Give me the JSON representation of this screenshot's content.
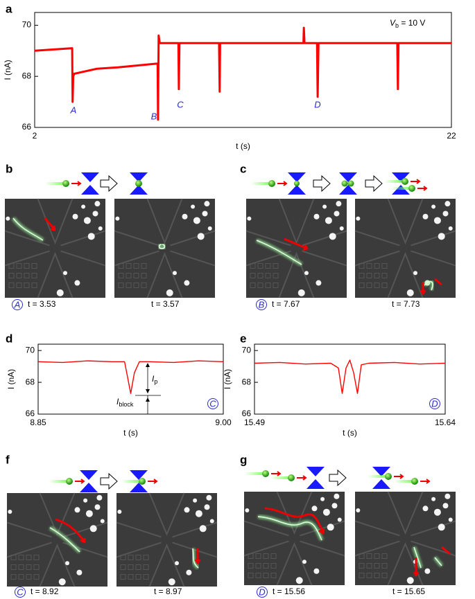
{
  "panel_labels": [
    "a",
    "b",
    "c",
    "d",
    "e",
    "f",
    "g"
  ],
  "chart_data": [
    {
      "type": "line",
      "xlabel": "t (s)",
      "ylabel": "I (nA)",
      "x": [
        2,
        3.8,
        3.82,
        3.85,
        3.9,
        5,
        6,
        7.9,
        7.92,
        7.95,
        8.0,
        8.9,
        8.92,
        8.95,
        10.85,
        10.88,
        10.9,
        14.9,
        14.92,
        14.95,
        15.55,
        15.58,
        15.62,
        19.4,
        19.43,
        19.46,
        22
      ],
      "series": [
        {
          "color": "#ff0000",
          "values": [
            69.0,
            69.1,
            67.0,
            68.0,
            68.1,
            68.3,
            68.35,
            68.5,
            66.3,
            69.6,
            69.3,
            69.3,
            67.5,
            69.3,
            69.3,
            67.4,
            69.3,
            69.3,
            69.9,
            69.3,
            69.3,
            67.2,
            69.3,
            69.3,
            67.5,
            69.3,
            69.3
          ]
        }
      ],
      "xlim": [
        2,
        22
      ],
      "ylim": [
        66,
        70.5
      ],
      "xticks": [
        2,
        22
      ],
      "yticks": [
        66,
        68,
        70
      ],
      "grid": false,
      "annotations": [
        {
          "text": "A"
        },
        {
          "text": "B"
        },
        {
          "text": "C"
        },
        {
          "text": "D"
        },
        {
          "text": "V",
          "sub": "b",
          "after": " = 10 V"
        }
      ]
    },
    {
      "type": "line",
      "xlabel": "t (s)",
      "ylabel": "I (nA)",
      "x": [
        8.85,
        8.87,
        8.89,
        8.91,
        8.92,
        8.922,
        8.925,
        8.928,
        8.932,
        8.94,
        8.96,
        8.98,
        9.0
      ],
      "series": [
        {
          "color": "#ff0000",
          "values": [
            69.3,
            69.25,
            69.35,
            69.3,
            69.3,
            68.5,
            67.3,
            68.6,
            69.3,
            69.3,
            69.25,
            69.35,
            69.3
          ]
        }
      ],
      "xlim": [
        8.85,
        9.0
      ],
      "ylim": [
        66,
        70.4
      ],
      "xticks": [
        8.85,
        {
          "value": 9.0,
          "label": "9.00"
        }
      ],
      "yticks": [
        66,
        68,
        70
      ],
      "grid": false,
      "annotations": [
        {
          "text": "I",
          "sub": "p"
        },
        {
          "text": "I",
          "sub": "block"
        },
        {
          "text": "C"
        }
      ]
    },
    {
      "type": "line",
      "xlabel": "t (s)",
      "ylabel": "I (nA)",
      "x": [
        15.49,
        15.51,
        15.53,
        15.55,
        15.556,
        15.559,
        15.562,
        15.565,
        15.568,
        15.571,
        15.574,
        15.58,
        15.6,
        15.62,
        15.64
      ],
      "series": [
        {
          "color": "#ff0000",
          "values": [
            69.2,
            69.25,
            69.15,
            69.2,
            68.9,
            67.3,
            68.9,
            69.4,
            68.6,
            67.3,
            69.1,
            69.2,
            69.25,
            69.15,
            69.2
          ]
        }
      ],
      "xlim": [
        15.49,
        15.64
      ],
      "ylim": [
        66,
        70.4
      ],
      "xticks": [
        15.49,
        15.64
      ],
      "yticks": [
        66,
        68,
        70
      ],
      "grid": false,
      "annotations": [
        {
          "text": "D"
        }
      ]
    }
  ],
  "micrographs": [
    {
      "marker": "A",
      "caption": "t = 3.53"
    },
    {
      "caption": "t = 3.57"
    },
    {
      "marker": "B",
      "caption": "t = 7.67"
    },
    {
      "caption": "t = 7.73"
    },
    {
      "marker": "C",
      "caption": "t = 8.92"
    },
    {
      "caption": "t = 8.97"
    },
    {
      "marker": "D",
      "caption": "t = 15.56"
    },
    {
      "caption": "t = 15.65"
    }
  ]
}
